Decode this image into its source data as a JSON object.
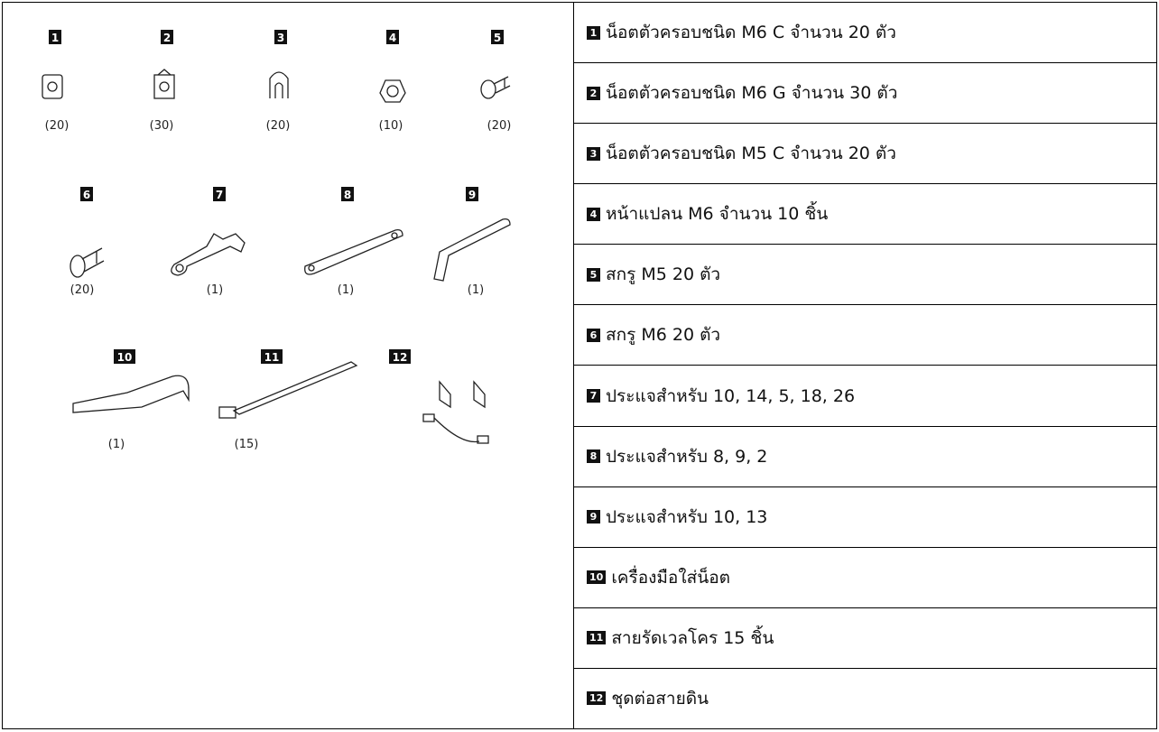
{
  "illustration": {
    "items": [
      {
        "badge": "1",
        "qty": "(20)"
      },
      {
        "badge": "2",
        "qty": "(30)"
      },
      {
        "badge": "3",
        "qty": "(20)"
      },
      {
        "badge": "4",
        "qty": "(10)"
      },
      {
        "badge": "5",
        "qty": "(20)"
      },
      {
        "badge": "6",
        "qty": "(20)"
      },
      {
        "badge": "7",
        "qty": "(1)"
      },
      {
        "badge": "8",
        "qty": "(1)"
      },
      {
        "badge": "9",
        "qty": "(1)"
      },
      {
        "badge": "10",
        "qty": "(1)"
      },
      {
        "badge": "11",
        "qty": "(15)"
      },
      {
        "badge": "12"
      }
    ]
  },
  "table": {
    "rows": [
      {
        "badge": "1",
        "text": "น็อตตัวครอบชนิด M6 C จำนวน 20 ตัว"
      },
      {
        "badge": "2",
        "text": "น็อตตัวครอบชนิด M6 G จำนวน 30 ตัว"
      },
      {
        "badge": "3",
        "text": "น็อตตัวครอบชนิด M5 C จำนวน 20 ตัว"
      },
      {
        "badge": "4",
        "text": "หน้าแปลน M6 จำนวน 10 ชิ้น"
      },
      {
        "badge": "5",
        "text": "สกรู M5 20 ตัว"
      },
      {
        "badge": "6",
        "text": "สกรู M6 20 ตัว"
      },
      {
        "badge": "7",
        "text": "ประแจสำหรับ 10, 14, 5, 18, 26"
      },
      {
        "badge": "8",
        "text": "ประแจสำหรับ 8, 9, 2"
      },
      {
        "badge": "9",
        "text": "ประแจสำหรับ 10, 13"
      },
      {
        "badge": "10",
        "text": "เครื่องมือใส่น็อต"
      },
      {
        "badge": "11",
        "text": "สายรัดเวลโคร 15 ชิ้น"
      },
      {
        "badge": "12",
        "text": "ชุดต่อสายดิน"
      }
    ]
  }
}
